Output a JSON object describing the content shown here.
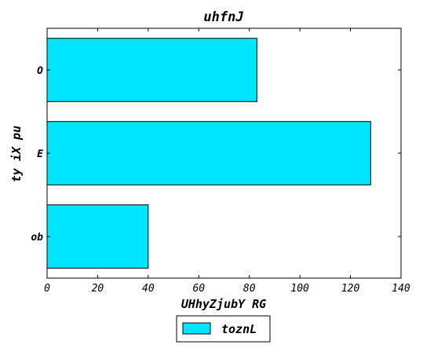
{
  "chart_data": {
    "type": "bar",
    "orientation": "horizontal",
    "title": "uhfnJ",
    "xlabel": "UHhyZjubY RG",
    "ylabel": "ty iX pu",
    "categories": [
      "ob",
      "E",
      "O"
    ],
    "series": [
      {
        "name": "toznL",
        "values": [
          40,
          128,
          83
        ],
        "color": "#00e5ff"
      }
    ],
    "xlim": [
      0,
      140
    ],
    "xticks": [
      0,
      20,
      40,
      60,
      80,
      100,
      120,
      140
    ],
    "grid": false,
    "legend_position": "bottom-center"
  }
}
